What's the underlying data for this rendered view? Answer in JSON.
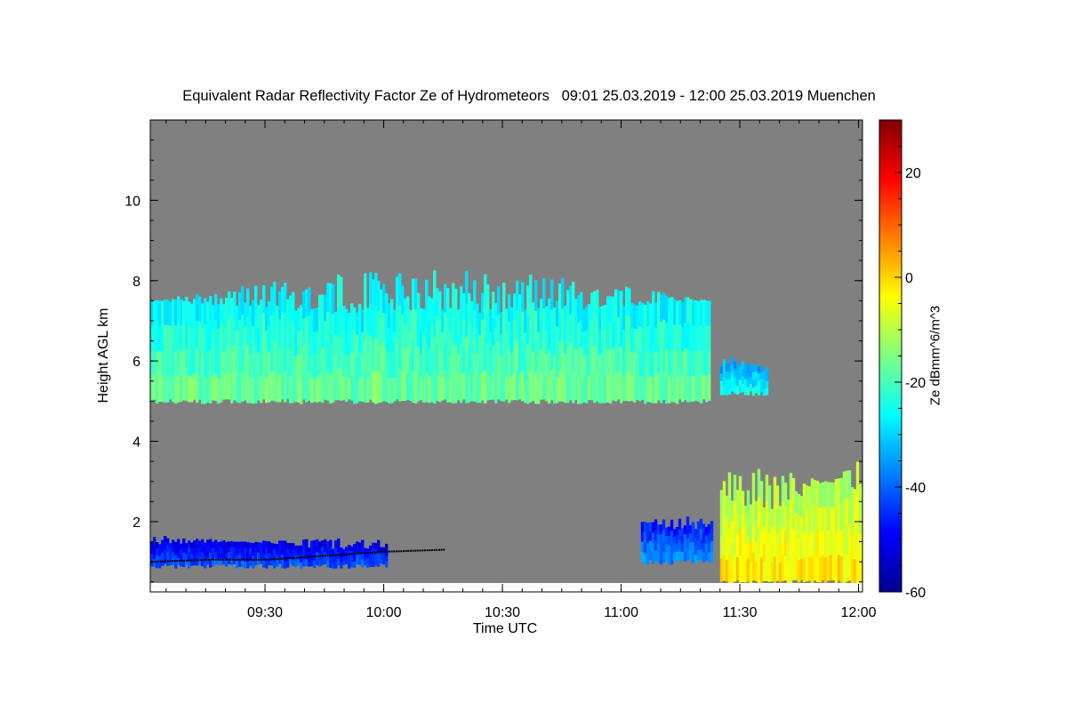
{
  "chart_data": {
    "type": "heatmap",
    "title": "Equivalent Radar Reflectivity Factor Ze of Hydrometeors   09:01 25.03.2019 - 12:00 25.03.2019 Muenchen",
    "xlabel": "Time UTC",
    "ylabel": "Height AGL km",
    "colorbar_label": "Ze dBmm^6/m^3",
    "x_ticks": [
      {
        "t": 90,
        "label": "09:30"
      },
      {
        "t": 120,
        "label": "10:00"
      },
      {
        "t": 150,
        "label": "10:30"
      },
      {
        "t": 180,
        "label": "11:00"
      },
      {
        "t": 210,
        "label": "11:30"
      },
      {
        "t": 240,
        "label": "12:00"
      }
    ],
    "y_ticks": [
      {
        "v": 2,
        "label": "2"
      },
      {
        "v": 4,
        "label": "4"
      },
      {
        "v": 6,
        "label": "6"
      },
      {
        "v": 8,
        "label": "8"
      },
      {
        "v": 10,
        "label": "10"
      }
    ],
    "colorbar_ticks": [
      {
        "v": -60,
        "label": "-60"
      },
      {
        "v": -40,
        "label": "-40"
      },
      {
        "v": -20,
        "label": "-20"
      },
      {
        "v": 0,
        "label": "0"
      },
      {
        "v": 20,
        "label": "20"
      }
    ],
    "x_range_minutes_after_0800": [
      61,
      241
    ],
    "y_range_km": [
      0.25,
      12
    ],
    "colorbar_range": [
      -60,
      30
    ],
    "colormap": "jet",
    "background_color": "#808080",
    "echo_regions": [
      {
        "name": "upper cloud layer",
        "t_start": 61,
        "t_end": 202,
        "base_km": 5.0,
        "top_km": 7.5,
        "ze_dbz": -20
      },
      {
        "name": "upper cloud patch",
        "t_start": 205,
        "t_end": 217,
        "base_km": 5.2,
        "top_km": 5.9,
        "ze_dbz": -28
      },
      {
        "name": "low drizzle layer",
        "t_start": 61,
        "t_end": 121,
        "base_km": 0.9,
        "top_km": 1.5,
        "ze_dbz": -45
      },
      {
        "name": "low echoes",
        "t_start": 185,
        "t_end": 203,
        "base_km": 1.0,
        "top_km": 2.0,
        "ze_dbz": -40
      },
      {
        "name": "precipitation cell",
        "t_start": 205,
        "t_end": 241,
        "base_km": 0.5,
        "top_km": 3.0,
        "ze_dbz": -5
      }
    ],
    "cloud_base_km": [
      {
        "t": 61,
        "h": 1.0
      },
      {
        "t": 75,
        "h": 1.05
      },
      {
        "t": 90,
        "h": 1.05
      },
      {
        "t": 105,
        "h": 1.15
      },
      {
        "t": 120,
        "h": 1.25
      },
      {
        "t": 135,
        "h": 1.3
      }
    ]
  }
}
